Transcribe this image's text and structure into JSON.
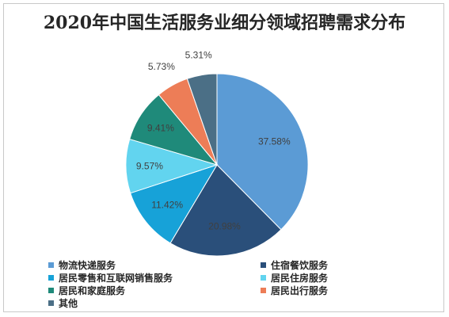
{
  "chart_data": {
    "type": "pie",
    "title": "2020年中国生活服务业细分领域招聘需求分布",
    "xlabel": "",
    "ylabel": "",
    "categories": [
      "物流快递服务",
      "住宿餐饮服务",
      "居民零售和互联网销售服务",
      "居民住房服务",
      "居民和家庭服务",
      "居民出行服务",
      "其他"
    ],
    "values": [
      37.58,
      20.98,
      11.42,
      9.57,
      9.41,
      5.73,
      5.31
    ],
    "data_labels": [
      "37.58%",
      "20.98%",
      "11.42%",
      "9.57%",
      "9.41%",
      "5.73%",
      "5.31%"
    ],
    "colors": [
      "#5b9bd5",
      "#2a4f7a",
      "#17a2d8",
      "#62d4ef",
      "#1f8a7a",
      "#ed7d57",
      "#4b6f86"
    ],
    "start_angle_deg": 0,
    "direction": "clockwise",
    "legend_position": "bottom",
    "grid": false
  }
}
